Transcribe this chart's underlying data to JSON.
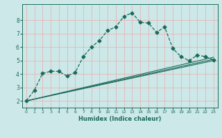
{
  "xlabel": "Humidex (Indice chaleur)",
  "xlim": [
    -0.5,
    23.5
  ],
  "ylim": [
    1.5,
    9.2
  ],
  "yticks": [
    2,
    3,
    4,
    5,
    6,
    7,
    8
  ],
  "xticks": [
    0,
    1,
    2,
    3,
    4,
    5,
    6,
    7,
    8,
    9,
    10,
    11,
    12,
    13,
    14,
    15,
    16,
    17,
    18,
    19,
    20,
    21,
    22,
    23
  ],
  "background_color": "#cce8e8",
  "grid_color": "#e8b4b4",
  "line_color": "#1a6b5a",
  "series_main": {
    "x": [
      0,
      1,
      2,
      3,
      4,
      5,
      6,
      7,
      8,
      9,
      10,
      11,
      12,
      13,
      14,
      15,
      16,
      17,
      18,
      19,
      20,
      21,
      22,
      23
    ],
    "y": [
      2.0,
      2.8,
      4.05,
      4.2,
      4.2,
      3.85,
      4.1,
      5.3,
      6.0,
      6.5,
      7.25,
      7.5,
      8.3,
      8.55,
      7.85,
      7.8,
      7.1,
      7.5,
      5.9,
      5.3,
      5.0,
      5.4,
      5.3,
      5.05
    ]
  },
  "series_flat": [
    {
      "x": [
        0,
        23
      ],
      "y": [
        2.0,
        5.0
      ]
    },
    {
      "x": [
        0,
        23
      ],
      "y": [
        2.0,
        5.1
      ]
    },
    {
      "x": [
        0,
        23
      ],
      "y": [
        2.0,
        5.25
      ]
    }
  ]
}
